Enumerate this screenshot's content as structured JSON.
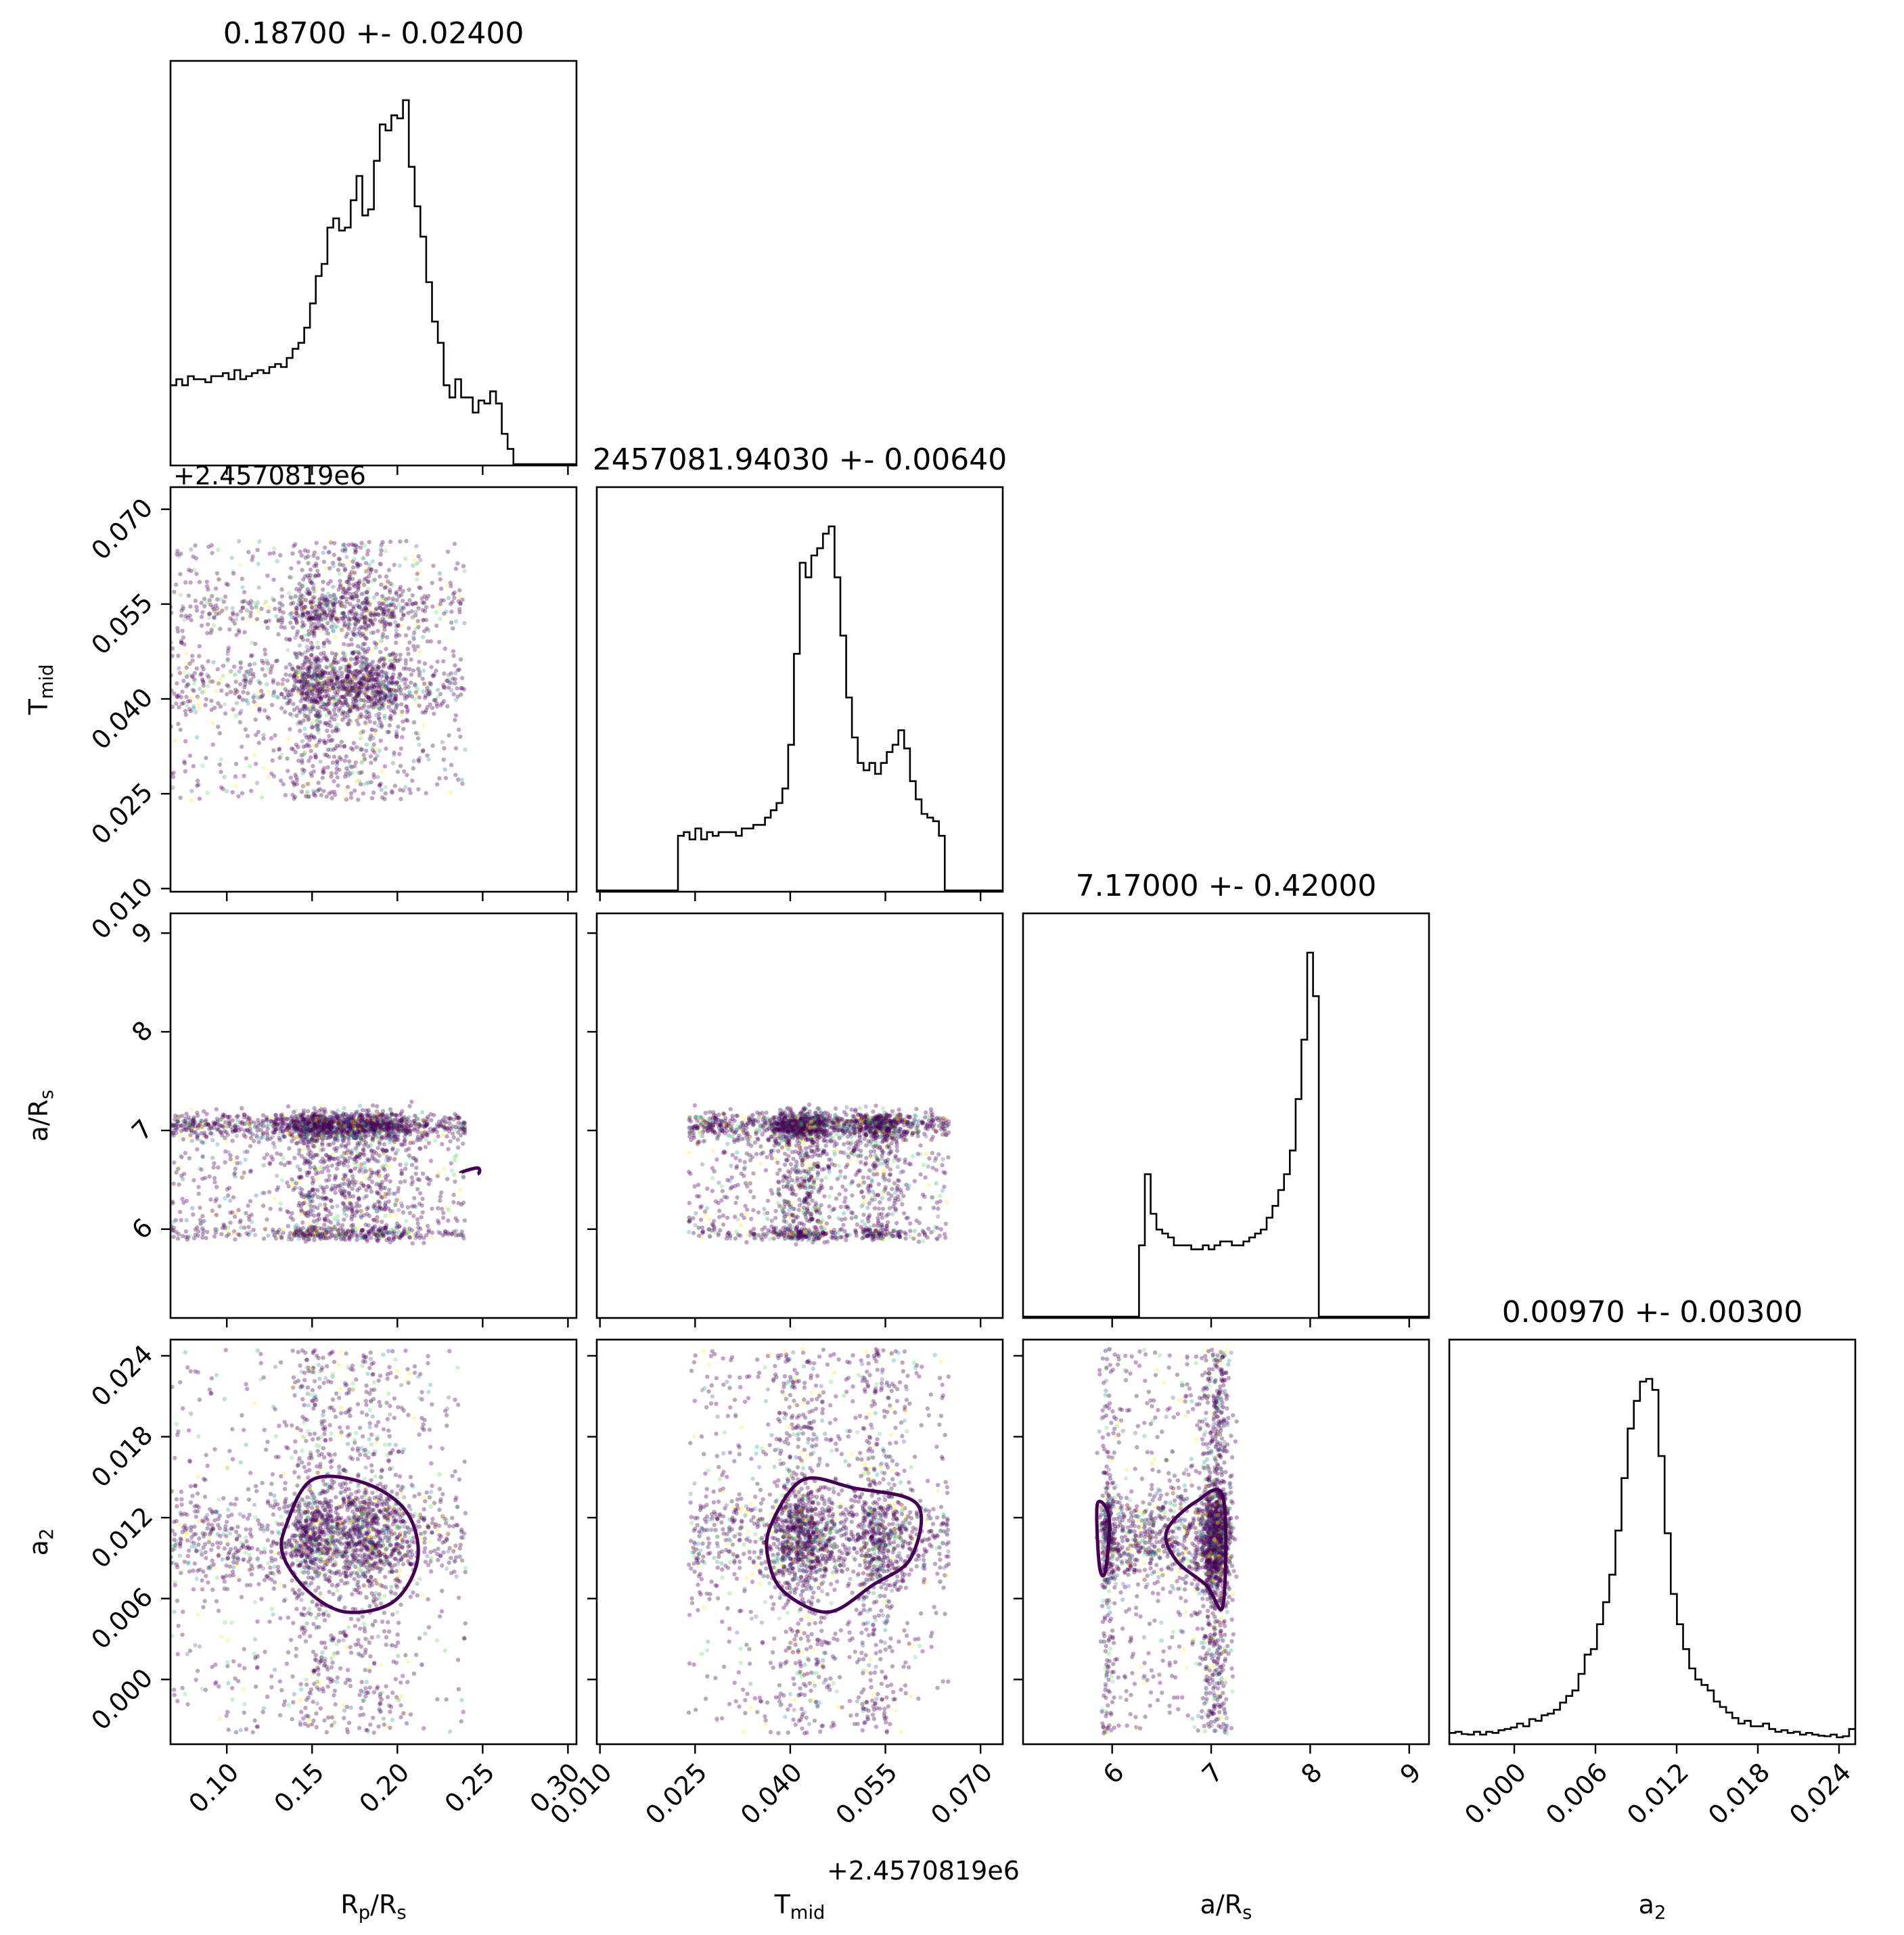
{
  "chart_data": {
    "type": "scatter",
    "layout": "corner",
    "parameters": [
      {
        "key": "rp",
        "label": "R",
        "sub": "p",
        "label2": "/R",
        "sub2": "s",
        "range": [
          0.067,
          0.305
        ],
        "ticks": [
          0.1,
          0.15,
          0.2,
          0.25,
          0.3
        ],
        "tick_labels": [
          "0.10",
          "0.15",
          "0.20",
          "0.25",
          "0.30"
        ]
      },
      {
        "key": "tmid",
        "label": "T",
        "sub": "mid",
        "label2": "",
        "sub2": "",
        "range": [
          0.0095,
          0.0735
        ],
        "ticks": [
          0.01,
          0.025,
          0.04,
          0.055,
          0.07
        ],
        "tick_labels": [
          "0.010",
          "0.025",
          "0.040",
          "0.055",
          "0.070"
        ],
        "offset": "+2.4570819e6"
      },
      {
        "key": "ars",
        "label": "a/R",
        "sub": "s",
        "label2": "",
        "sub2": "",
        "range": [
          5.1,
          9.2
        ],
        "ticks": [
          6,
          7,
          8,
          9
        ],
        "tick_labels": [
          "6",
          "7",
          "8",
          "9"
        ]
      },
      {
        "key": "a2",
        "label": "a",
        "sub": "2",
        "label2": "",
        "sub2": "",
        "range": [
          -0.0048,
          0.0252
        ],
        "ticks": [
          0.0,
          0.006,
          0.012,
          0.018,
          0.024
        ],
        "tick_labels": [
          "0.000",
          "0.006",
          "0.012",
          "0.018",
          "0.024"
        ]
      }
    ],
    "titles": [
      "0.18700 +- 0.02400",
      "2457081.94030 +- 0.00640",
      "7.17000 +- 0.42000",
      "0.00970 +- 0.00300"
    ],
    "histograms": [
      {
        "edges": [
          0.067,
          0.3055
        ],
        "counts": [
          26,
          28,
          26,
          29,
          28,
          28,
          27,
          29,
          29,
          30,
          28,
          31,
          28,
          29,
          30,
          31,
          30,
          32,
          33,
          32,
          35,
          38,
          40,
          45,
          53,
          62,
          66,
          78,
          81,
          77,
          78,
          87,
          95,
          82,
          84,
          100,
          112,
          110,
          115,
          114,
          120,
          98,
          85,
          75,
          60,
          47,
          40,
          26,
          22,
          28,
          22,
          22,
          17,
          21,
          20,
          24,
          20,
          10,
          5,
          0,
          0,
          0,
          0,
          0,
          0,
          0,
          0,
          0,
          0,
          0
        ]
      },
      {
        "edges": [
          0.0095,
          0.0735
        ],
        "counts": [
          0,
          0,
          0,
          0,
          0,
          0,
          0,
          0,
          0,
          0,
          0,
          0,
          0,
          0,
          15,
          16,
          14,
          17,
          14,
          16,
          15,
          16,
          16,
          16,
          15,
          17,
          17,
          18,
          18,
          20,
          22,
          24,
          28,
          40,
          65,
          90,
          86,
          92,
          94,
          98,
          100,
          86,
          70,
          53,
          42,
          35,
          33,
          35,
          32,
          35,
          38,
          40,
          44,
          39,
          30,
          25,
          21,
          20,
          19,
          15,
          0,
          0,
          0,
          0,
          0,
          0,
          0,
          0,
          0,
          0
        ]
      },
      {
        "edges": [
          5.1,
          9.2
        ],
        "counts": [
          0,
          0,
          0,
          0,
          0,
          0,
          0,
          0,
          0,
          0,
          0,
          0,
          0,
          0,
          0,
          0,
          0,
          0,
          0,
          0,
          18,
          36,
          26,
          22,
          21,
          20,
          18,
          18,
          18,
          17,
          17,
          18,
          17,
          18,
          19,
          19,
          18,
          18,
          19,
          20,
          21,
          22,
          25,
          28,
          32,
          36,
          42,
          55,
          70,
          92,
          81,
          0,
          0,
          0,
          0,
          0,
          0,
          0,
          0,
          0,
          0,
          0,
          0,
          0,
          0,
          0,
          0,
          0,
          0,
          0
        ]
      },
      {
        "edges": [
          -0.0048,
          0.0252
        ],
        "counts": [
          1.8,
          2.0,
          1.6,
          1.5,
          2.0,
          1.5,
          2.0,
          1.8,
          2.3,
          2.5,
          2.8,
          3.5,
          3.0,
          4.3,
          4.0,
          5.0,
          5.3,
          6.0,
          7.3,
          8.5,
          9.5,
          12.5,
          16.0,
          17.0,
          21.5,
          25.5,
          30.5,
          38.5,
          48.0,
          57.0,
          62.0,
          65.5,
          66.0,
          64.0,
          52.0,
          38.0,
          27.0,
          21.5,
          17.0,
          13.5,
          11.5,
          10.5,
          9.5,
          7.5,
          6.5,
          5.5,
          4.5,
          3.5,
          4.0,
          3.0,
          3.0,
          3.5,
          2.5,
          2.0,
          2.3,
          1.8,
          2.0,
          1.5,
          1.8,
          1.5,
          1.3,
          1.2,
          1.5,
          1.0,
          1.2,
          2.5
        ]
      }
    ],
    "clusters": {
      "rp": [
        {
          "w": 0.35,
          "mu": 0.18,
          "sd": 0.02
        },
        {
          "w": 0.2,
          "mu": 0.15,
          "sd": 0.01
        },
        {
          "w": 0.45,
          "uniform": [
            0.067,
            0.24
          ]
        }
      ],
      "tmid": [
        {
          "w": 0.35,
          "mu": 0.042,
          "sd": 0.0035
        },
        {
          "w": 0.2,
          "mu": 0.054,
          "sd": 0.003
        },
        {
          "w": 0.45,
          "uniform": [
            0.024,
            0.065
          ]
        }
      ],
      "ars": [
        {
          "w": 0.5,
          "mu": 7.05,
          "sd": 0.1
        },
        {
          "w": 0.1,
          "mu": 5.95,
          "sd": 0.05
        },
        {
          "w": 0.4,
          "uniform": [
            5.9,
            7.15
          ]
        }
      ],
      "a2": [
        {
          "w": 0.55,
          "mu": 0.0105,
          "sd": 0.0025
        },
        {
          "w": 0.45,
          "uniform": [
            -0.004,
            0.0245
          ]
        }
      ]
    },
    "contours": [
      {
        "row": 3,
        "col": 0,
        "points": [
          [
            0.135,
            0.0115
          ],
          [
            0.15,
            0.0148
          ],
          [
            0.18,
            0.0146
          ],
          [
            0.205,
            0.0125
          ],
          [
            0.212,
            0.009
          ],
          [
            0.198,
            0.0058
          ],
          [
            0.17,
            0.005
          ],
          [
            0.148,
            0.0065
          ],
          [
            0.133,
            0.0092
          ]
        ]
      },
      {
        "row": 3,
        "col": 1,
        "points": [
          [
            0.037,
            0.0115
          ],
          [
            0.042,
            0.0148
          ],
          [
            0.05,
            0.0142
          ],
          [
            0.06,
            0.013
          ],
          [
            0.059,
            0.009
          ],
          [
            0.053,
            0.007
          ],
          [
            0.046,
            0.005
          ],
          [
            0.039,
            0.0065
          ],
          [
            0.0365,
            0.009
          ]
        ]
      },
      {
        "row": 3,
        "col": 2,
        "points": [
          [
            5.85,
            0.013
          ],
          [
            5.97,
            0.012
          ],
          [
            5.93,
            0.008
          ],
          [
            5.87,
            0.0085
          ]
        ]
      },
      {
        "row": 3,
        "col": 2,
        "points": [
          [
            6.55,
            0.011
          ],
          [
            6.85,
            0.0132
          ],
          [
            7.12,
            0.0135
          ],
          [
            7.12,
            0.0055
          ],
          [
            6.95,
            0.007
          ],
          [
            6.65,
            0.0088
          ]
        ]
      },
      {
        "row": 2,
        "col": 0,
        "points": [
          [
            0.237,
            6.57
          ],
          [
            0.247,
            6.62
          ],
          [
            0.247,
            6.56
          ]
        ],
        "open": true
      }
    ],
    "scatter_palette": [
      "#440154",
      "#3b528b",
      "#21918c",
      "#5ec962",
      "#fde725"
    ]
  }
}
